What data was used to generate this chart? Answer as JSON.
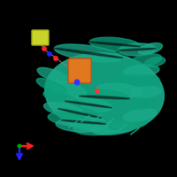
{
  "background_color": "#000000",
  "protein_color": "#1aab8a",
  "protein_color2": "#0d9e7a",
  "protein_dark": "#0a7a5a",
  "ligand_orange_color": "#e07820",
  "ligand_yellow_color": "#c8d42a",
  "axis_x_color": "#ff2222",
  "axis_y_color": "#2222ff",
  "axis_origin_color": "#00aa00",
  "figsize": [
    2.0,
    2.0
  ],
  "dpi": 100
}
